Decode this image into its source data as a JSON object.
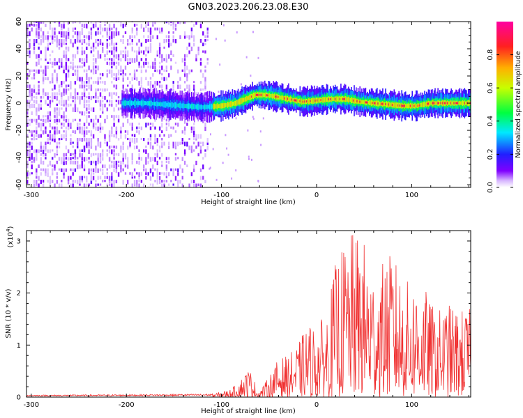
{
  "figure": {
    "title": "GN03.2023.206.23.08.E30"
  },
  "chart_data": [
    {
      "type": "heatmap",
      "xlabel": "Height of straight line (km)",
      "ylabel": "Frequency (Hz)",
      "xlim": [
        -305,
        162
      ],
      "ylim": [
        -62,
        60
      ],
      "xticks": [
        -300,
        -200,
        -100,
        0,
        100
      ],
      "yticks": [
        -60,
        -40,
        -20,
        0,
        20,
        40,
        60
      ],
      "colorbar": {
        "label": "Normalized spectral amplitude",
        "range": [
          0,
          1
        ],
        "ticks": [
          0.0,
          0.2,
          0.4,
          0.6,
          0.8
        ],
        "colors": [
          "#ffffff",
          "#c8a0ff",
          "#8000ff",
          "#2020ff",
          "#00ffff",
          "#00ff40",
          "#c0ff00",
          "#ffb000",
          "#ff2020",
          "#ff00a0"
        ]
      },
      "noise_region": {
        "x_range": [
          -305,
          -115
        ],
        "amplitude": "0.0-0.2"
      },
      "ridge": {
        "x": [
          -205,
          -180,
          -160,
          -140,
          -120,
          -100,
          -85,
          -75,
          -65,
          -55,
          -45,
          -30,
          -15,
          0,
          15,
          30,
          45,
          60,
          75,
          90,
          105,
          120,
          140,
          162
        ],
        "frequency": [
          0,
          0,
          -1,
          -2,
          -3,
          -2,
          0,
          3,
          6,
          6,
          5,
          3,
          1,
          2,
          3,
          3,
          1,
          0,
          -1,
          -2,
          -2,
          0,
          0,
          0
        ],
        "peak_amplitude": 0.9
      }
    },
    {
      "type": "line",
      "xlabel": "Height of straight line (km)",
      "ylabel": "SNR (10 * v/v)",
      "yscale_label": "(x10",
      "yscale_exp": "4",
      "yscale_close": ")",
      "xlim": [
        -305,
        162
      ],
      "ylim": [
        0,
        3.2
      ],
      "xticks": [
        -300,
        -200,
        -100,
        0,
        100
      ],
      "yticks": [
        0,
        1,
        2,
        3
      ],
      "color": "#f03030",
      "envelope": {
        "x": [
          -305,
          -200,
          -110,
          -90,
          -80,
          -72,
          -67,
          -62,
          -57,
          -50,
          -40,
          -30,
          -20,
          -10,
          0,
          10,
          20,
          30,
          40,
          50,
          60,
          70,
          80,
          90,
          100,
          110,
          120,
          130,
          140,
          150,
          162
        ],
        "y": [
          0.04,
          0.05,
          0.06,
          0.15,
          0.35,
          0.55,
          0.45,
          0.1,
          0.2,
          0.4,
          0.75,
          0.8,
          1.0,
          1.4,
          1.4,
          1.6,
          2.6,
          3.0,
          3.2,
          3.0,
          2.4,
          2.6,
          2.8,
          2.3,
          2.2,
          2.3,
          1.8,
          1.7,
          1.8,
          1.7,
          1.7
        ]
      }
    }
  ]
}
